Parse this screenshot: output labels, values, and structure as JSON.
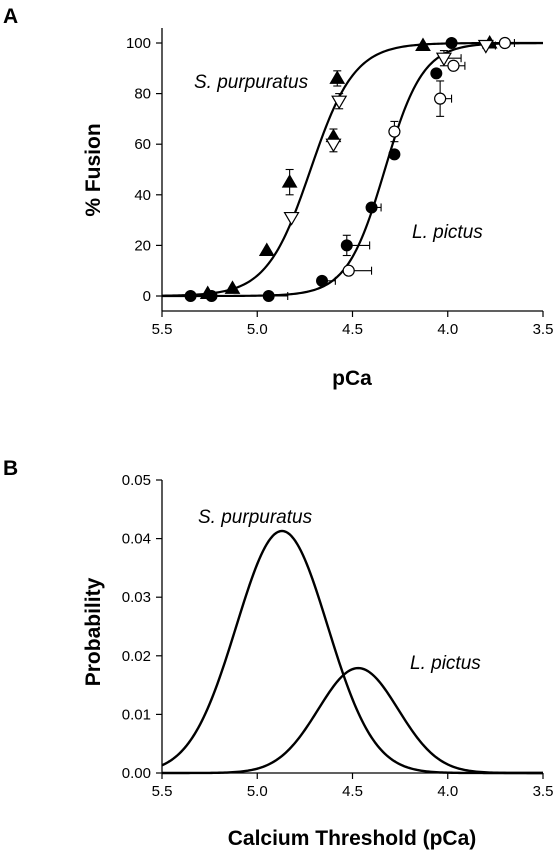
{
  "chart_data": [
    {
      "panel": "A",
      "type": "scatter",
      "xlabel": "pCa",
      "ylabel": "% Fusion",
      "xlim": [
        5.5,
        3.5
      ],
      "ylim": [
        0,
        100
      ],
      "x_reversed": true,
      "x_ticks": [
        "5.5",
        "5.0",
        "4.5",
        "4.0",
        "3.5"
      ],
      "y_ticks": [
        "0",
        "20",
        "40",
        "60",
        "80",
        "100"
      ],
      "grid": false,
      "series": [
        {
          "name": "S. purpuratus",
          "fit": {
            "type": "hill",
            "pca50": 4.72,
            "slope_pca_units": 0.115
          },
          "points": [
            {
              "marker": "filled-triangle",
              "x": 5.26,
              "y": 1,
              "xerr": 0,
              "yerr": 0
            },
            {
              "marker": "filled-triangle",
              "x": 5.13,
              "y": 3,
              "xerr": 0,
              "yerr": 0
            },
            {
              "marker": "filled-triangle",
              "x": 4.95,
              "y": 18,
              "xerr": 0,
              "yerr": 0
            },
            {
              "marker": "filled-triangle",
              "x": 4.83,
              "y": 45,
              "xerr": 0,
              "yerr": 5
            },
            {
              "marker": "filled-triangle",
              "x": 4.6,
              "y": 63,
              "xerr": 0,
              "yerr": 3
            },
            {
              "marker": "filled-triangle",
              "x": 4.58,
              "y": 86,
              "xerr": 0,
              "yerr": 3
            },
            {
              "marker": "filled-triangle",
              "x": 4.13,
              "y": 99,
              "xerr": 0,
              "yerr": 0
            },
            {
              "marker": "filled-triangle",
              "x": 3.78,
              "y": 100,
              "xerr": 0,
              "yerr": 0
            },
            {
              "marker": "open-inverted-triangle",
              "x": 4.82,
              "y": 31,
              "xerr": 0,
              "yerr": 0
            },
            {
              "marker": "open-inverted-triangle",
              "x": 4.6,
              "y": 60,
              "xerr": 0,
              "yerr": 3
            },
            {
              "marker": "open-inverted-triangle",
              "x": 4.57,
              "y": 77,
              "xerr": 0,
              "yerr": 3
            },
            {
              "marker": "open-inverted-triangle",
              "x": 4.02,
              "y": 94,
              "xerr": 0.09,
              "yerr": 3
            },
            {
              "marker": "open-inverted-triangle",
              "x": 3.8,
              "y": 99,
              "xerr": 0.05,
              "yerr": 0
            }
          ]
        },
        {
          "name": "L. pictus",
          "fit": {
            "type": "hill",
            "pca50": 4.33,
            "slope_pca_units": 0.1
          },
          "points": [
            {
              "marker": "filled-circle",
              "x": 5.35,
              "y": 0,
              "xerr": 0,
              "yerr": 0
            },
            {
              "marker": "filled-circle",
              "x": 5.24,
              "y": 0,
              "xerr": 0,
              "yerr": 0
            },
            {
              "marker": "filled-circle",
              "x": 4.94,
              "y": 0,
              "xerr": 0.1,
              "yerr": 0
            },
            {
              "marker": "filled-circle",
              "x": 4.66,
              "y": 6,
              "xerr": 0.07,
              "yerr": 0
            },
            {
              "marker": "filled-circle",
              "x": 4.53,
              "y": 20,
              "xerr": 0.12,
              "yerr": 4
            },
            {
              "marker": "filled-circle",
              "x": 4.4,
              "y": 35,
              "xerr": 0.05,
              "yerr": 0
            },
            {
              "marker": "filled-circle",
              "x": 4.28,
              "y": 56,
              "xerr": 0,
              "yerr": 0
            },
            {
              "marker": "filled-circle",
              "x": 4.06,
              "y": 88,
              "xerr": 0,
              "yerr": 0
            },
            {
              "marker": "filled-circle",
              "x": 3.98,
              "y": 100,
              "xerr": 0,
              "yerr": 0
            },
            {
              "marker": "open-circle",
              "x": 4.52,
              "y": 10,
              "xerr": 0.12,
              "yerr": 0
            },
            {
              "marker": "open-circle",
              "x": 4.28,
              "y": 65,
              "xerr": 0,
              "yerr": 4
            },
            {
              "marker": "open-circle",
              "x": 3.97,
              "y": 91,
              "xerr": 0.06,
              "yerr": 0
            },
            {
              "marker": "open-circle",
              "x": 4.04,
              "y": 78,
              "xerr": 0.06,
              "yerr": 7
            },
            {
              "marker": "open-circle",
              "x": 3.7,
              "y": 100,
              "xerr": 0.05,
              "yerr": 0
            }
          ]
        }
      ]
    },
    {
      "panel": "B",
      "type": "line",
      "xlabel": "Calcium Threshold (pCa)",
      "ylabel": "Probability",
      "xlim": [
        5.5,
        3.5
      ],
      "ylim": [
        0,
        0.05
      ],
      "x_reversed": true,
      "x_ticks": [
        "5.5",
        "5.0",
        "4.5",
        "4.0",
        "3.5"
      ],
      "y_ticks": [
        "0.00",
        "0.01",
        "0.02",
        "0.03",
        "0.04",
        "0.05"
      ],
      "grid": false,
      "series": [
        {
          "name": "S. purpuratus",
          "curve": "gaussian",
          "peak_x": 4.87,
          "peak_y": 0.0413,
          "sd": 0.24
        },
        {
          "name": "L. pictus",
          "curve": "gaussian",
          "peak_x": 4.47,
          "peak_y": 0.0179,
          "sd": 0.21
        }
      ]
    }
  ]
}
